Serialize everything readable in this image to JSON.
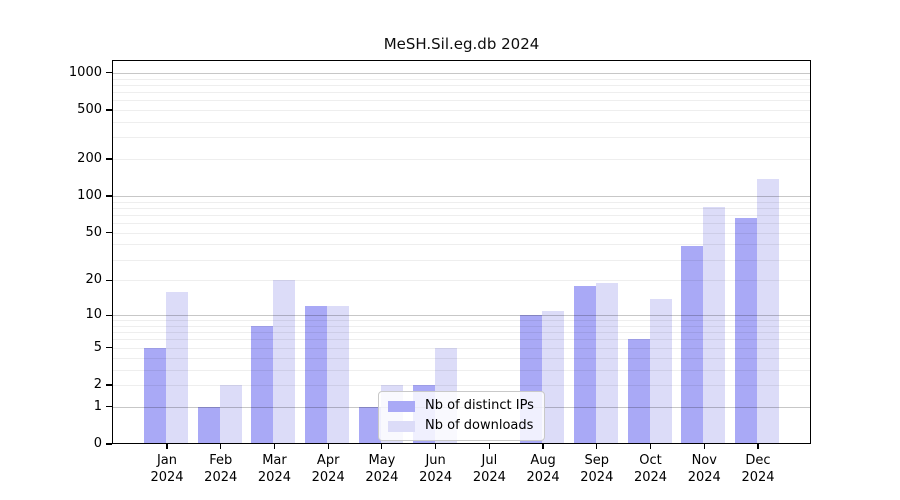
{
  "title": "MeSH.Sil.eg.db 2024",
  "colors": {
    "bar_distinct_ips": "#a9a9f6",
    "bar_downloads": "#dcdcf8",
    "grid_major": "rgba(0,0,0,0.22)",
    "grid_minor": "rgba(0,0,0,0.065)",
    "axis": "#000000",
    "background": "#ffffff"
  },
  "chart_data": {
    "type": "bar",
    "title": "MeSH.Sil.eg.db 2024",
    "xlabel": "",
    "ylabel": "",
    "yscale": "log1p",
    "ylim": [
      0,
      1270
    ],
    "grid": "major and minor horizontal gridlines",
    "yticks": [
      0,
      1,
      2,
      5,
      10,
      20,
      50,
      100,
      200,
      500,
      1000
    ],
    "categories": [
      "Jan 2024",
      "Feb 2024",
      "Mar 2024",
      "Apr 2024",
      "May 2024",
      "Jun 2024",
      "Jul 2024",
      "Aug 2024",
      "Sep 2024",
      "Oct 2024",
      "Nov 2024",
      "Dec 2024"
    ],
    "series": [
      {
        "name": "Nb of distinct IPs",
        "color": "#a9a9f6",
        "values": [
          5,
          1,
          8,
          12,
          1,
          2,
          0,
          10,
          18,
          6,
          39,
          66
        ]
      },
      {
        "name": "Nb of downloads",
        "color": "#dcdcf8",
        "values": [
          16,
          2,
          20,
          12,
          2,
          5,
          0,
          11,
          19,
          14,
          82,
          138
        ]
      }
    ],
    "legend": {
      "position": "lower center",
      "entries": [
        "Nb of distinct IPs",
        "Nb of downloads"
      ]
    }
  }
}
